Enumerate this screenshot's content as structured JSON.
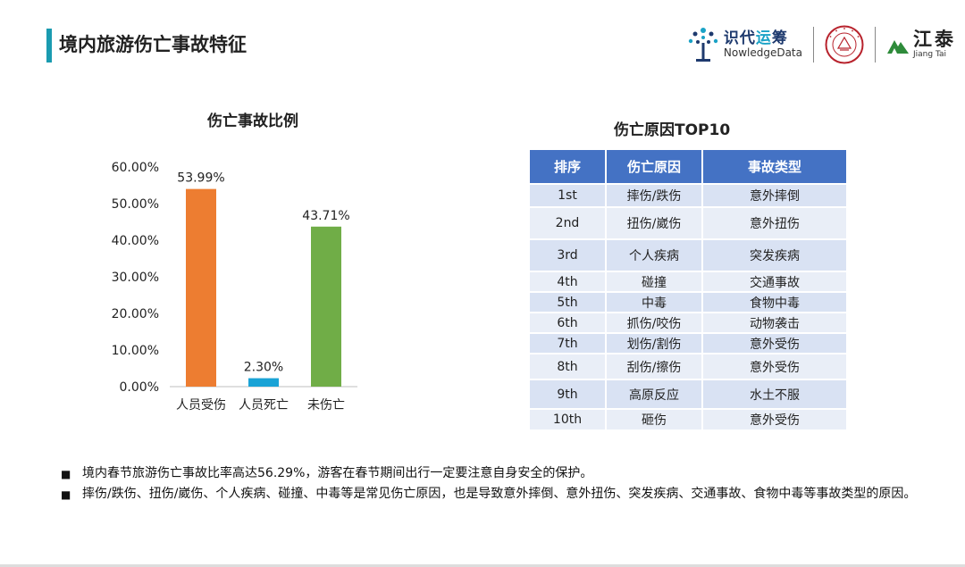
{
  "page": {
    "title": "境内旅游伤亡事故特征"
  },
  "logos": {
    "knowledge_cn_pre": "识代",
    "knowledge_cn_hl": "运",
    "knowledge_cn_post": "筹",
    "knowledge_en": "NowledgeData",
    "seal_text": "HUAQIAO UNIVERSITY",
    "jiangtai_cn": "江泰",
    "jiangtai_en": "Jiang Tai"
  },
  "chart_data": {
    "type": "bar",
    "title": "伤亡事故比例",
    "categories": [
      "人员受伤",
      "人员死亡",
      "未伤亡"
    ],
    "values": [
      53.99,
      2.3,
      43.71
    ],
    "value_labels": [
      "53.99%",
      "2.30%",
      "43.71%"
    ],
    "colors": [
      "#ed7d31",
      "#1aa3d6",
      "#70ad47"
    ],
    "ylim": [
      0,
      60
    ],
    "yticks": [
      "0.00%",
      "10.00%",
      "20.00%",
      "30.00%",
      "40.00%",
      "50.00%",
      "60.00%"
    ],
    "xlabel": "",
    "ylabel": ""
  },
  "table": {
    "title": "伤亡原因TOP10",
    "headers": [
      "排序",
      "伤亡原因",
      "事故类型"
    ],
    "rows": [
      [
        "1st",
        "摔伤/跌伤",
        "意外摔倒"
      ],
      [
        "2nd",
        "扭伤/崴伤",
        "意外扭伤"
      ],
      [
        "3rd",
        "个人疾病",
        "突发疾病"
      ],
      [
        "4th",
        "碰撞",
        "交通事故"
      ],
      [
        "5th",
        "中毒",
        "食物中毒"
      ],
      [
        "6th",
        "抓伤/咬伤",
        "动物袭击"
      ],
      [
        "7th",
        "划伤/割伤",
        "意外受伤"
      ],
      [
        "8th",
        "刮伤/擦伤",
        "意外受伤"
      ],
      [
        "9th",
        "高原反应",
        "水土不服"
      ],
      [
        "10th",
        "砸伤",
        "意外受伤"
      ]
    ]
  },
  "notes": [
    "境内春节旅游伤亡事故比率高达56.29%，游客在春节期间出行一定要注意自身安全的保护。",
    "摔伤/跌伤、扭伤/崴伤、个人疾病、碰撞、中毒等是常见伤亡原因，也是导致意外摔倒、意外扭伤、突发疾病、交通事故、食物中毒等事故类型的原因。"
  ],
  "colors": {
    "accent": "#1a9bb0",
    "table_header": "#4472c4"
  }
}
